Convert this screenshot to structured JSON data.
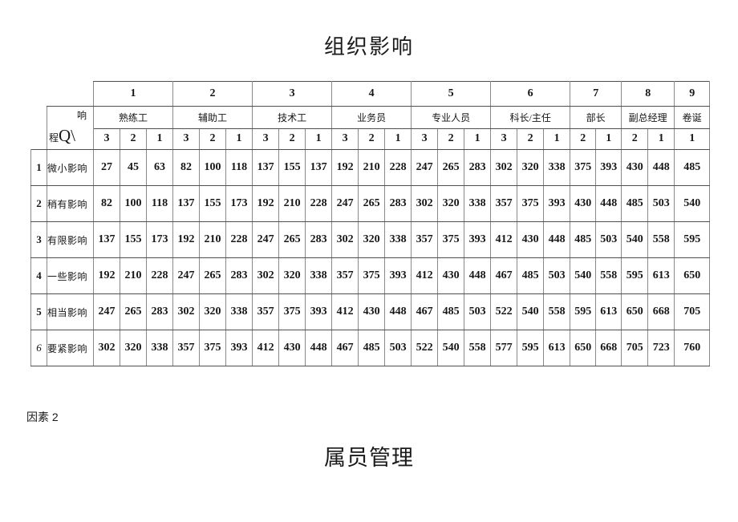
{
  "page": {
    "title_top": "组织影响",
    "factor_label": "因素 2",
    "title_bottom": "属员管理"
  },
  "colors": {
    "background": "#ffffff",
    "text": "#111111",
    "table_border_dark": "#4f4f4f",
    "table_border_light": "#8a8a8a"
  },
  "table": {
    "corner": {
      "top": "响",
      "bottom_small": "程",
      "bottom_big": "Q\\"
    },
    "groups": [
      {
        "number": "1",
        "title": "熟练工",
        "subcols": [
          "3",
          "2",
          "1"
        ]
      },
      {
        "number": "2",
        "title": "辅助工",
        "subcols": [
          "3",
          "2",
          "1"
        ]
      },
      {
        "number": "3",
        "title": "技术工",
        "subcols": [
          "3",
          "2",
          "1"
        ]
      },
      {
        "number": "4",
        "title": "业务员",
        "subcols": [
          "3",
          "2",
          "1"
        ]
      },
      {
        "number": "5",
        "title": "专业人员",
        "subcols": [
          "3",
          "2",
          "1"
        ]
      },
      {
        "number": "6",
        "title": "科长/主任",
        "subcols": [
          "3",
          "2",
          "1"
        ]
      },
      {
        "number": "7",
        "title": "部长",
        "subcols": [
          "2",
          "1"
        ]
      },
      {
        "number": "8",
        "title": "副总经理",
        "subcols": [
          "2",
          "1"
        ]
      },
      {
        "number": "9",
        "title": "卷诞",
        "subcols": [
          "1"
        ]
      }
    ],
    "rows": [
      {
        "num": "1",
        "num_italic": false,
        "label": "微小影响",
        "values": [
          27,
          45,
          63,
          82,
          100,
          118,
          137,
          155,
          137,
          192,
          210,
          228,
          247,
          265,
          283,
          302,
          320,
          338,
          375,
          393,
          430,
          448,
          485
        ]
      },
      {
        "num": "2",
        "num_italic": false,
        "label": "稍有影响",
        "values": [
          82,
          100,
          118,
          137,
          155,
          173,
          192,
          210,
          228,
          247,
          265,
          283,
          302,
          320,
          338,
          357,
          375,
          393,
          430,
          448,
          485,
          503,
          540
        ]
      },
      {
        "num": "3",
        "num_italic": false,
        "label": "有限影响",
        "values": [
          137,
          155,
          173,
          192,
          210,
          228,
          247,
          265,
          283,
          302,
          320,
          338,
          357,
          375,
          393,
          412,
          430,
          448,
          485,
          503,
          540,
          558,
          595
        ]
      },
      {
        "num": "4",
        "num_italic": false,
        "label": "一些影响",
        "values": [
          192,
          210,
          228,
          247,
          265,
          283,
          302,
          320,
          338,
          357,
          375,
          393,
          412,
          430,
          448,
          467,
          485,
          503,
          540,
          558,
          595,
          613,
          650
        ]
      },
      {
        "num": "5",
        "num_italic": false,
        "label": "相当影响",
        "values": [
          247,
          265,
          283,
          302,
          320,
          338,
          357,
          375,
          393,
          412,
          430,
          448,
          467,
          485,
          503,
          522,
          540,
          558,
          595,
          613,
          650,
          668,
          705
        ]
      },
      {
        "num": "6",
        "num_italic": true,
        "label": "要紧影响",
        "values": [
          302,
          320,
          338,
          357,
          375,
          393,
          412,
          430,
          448,
          467,
          485,
          503,
          522,
          540,
          558,
          577,
          595,
          613,
          650,
          668,
          705,
          723,
          760
        ]
      }
    ]
  }
}
